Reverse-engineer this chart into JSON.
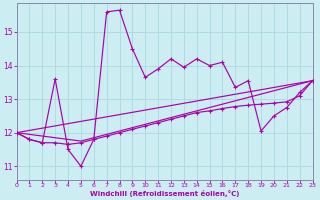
{
  "xlabel": "Windchill (Refroidissement éolien,°C)",
  "bg_color": "#cceef2",
  "line_color": "#aa00aa",
  "grid_color": "#aad8e0",
  "xmin": 0,
  "xmax": 23,
  "ymin": 10.6,
  "ymax": 15.85,
  "yticks": [
    11,
    12,
    13,
    14,
    15
  ],
  "xticks": [
    0,
    1,
    2,
    3,
    4,
    5,
    6,
    7,
    8,
    9,
    10,
    11,
    12,
    13,
    14,
    15,
    16,
    17,
    18,
    19,
    20,
    21,
    22,
    23
  ],
  "curve1_x": [
    0,
    1,
    2,
    3,
    4,
    5,
    6,
    7,
    8,
    9,
    10,
    11,
    12,
    13,
    14,
    15,
    16,
    17,
    18,
    19,
    20,
    21,
    22,
    23
  ],
  "curve1_y": [
    12.0,
    11.8,
    11.7,
    13.6,
    11.5,
    11.0,
    11.8,
    15.6,
    15.65,
    14.5,
    13.65,
    13.9,
    14.2,
    13.95,
    14.2,
    14.0,
    14.1,
    13.35,
    13.55,
    12.05,
    12.5,
    12.75,
    13.2,
    13.55
  ],
  "curve2_x": [
    0,
    1,
    2,
    3,
    4,
    5,
    6,
    7,
    8,
    9,
    10,
    11,
    12,
    13,
    14,
    15,
    16,
    17,
    18,
    19,
    20,
    21,
    22,
    23
  ],
  "curve2_y": [
    12.0,
    11.8,
    11.7,
    11.7,
    11.65,
    11.7,
    11.8,
    11.9,
    12.0,
    12.1,
    12.2,
    12.3,
    12.4,
    12.5,
    12.6,
    12.65,
    12.72,
    12.78,
    12.82,
    12.85,
    12.88,
    12.92,
    13.1,
    13.55
  ],
  "line3_x": [
    0,
    5,
    23
  ],
  "line3_y": [
    12.0,
    11.75,
    13.55
  ],
  "line4_x": [
    0,
    23
  ],
  "line4_y": [
    12.0,
    13.55
  ]
}
